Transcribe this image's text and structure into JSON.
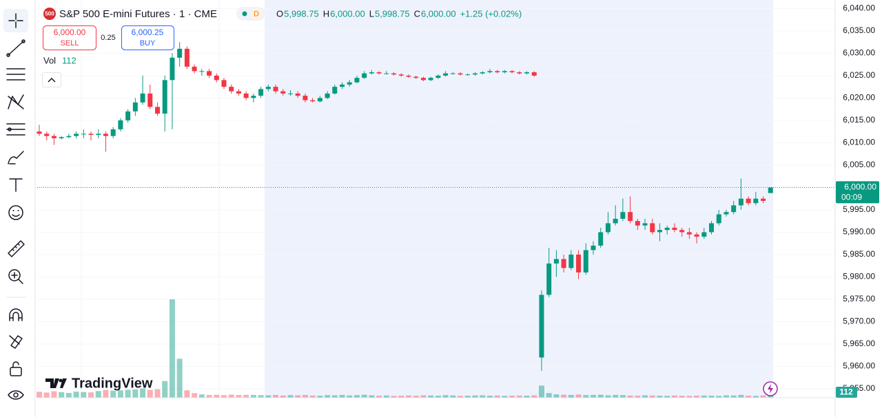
{
  "header": {
    "badge": "500",
    "symbol": "S&P 500 E-mini Futures · 1 · CME",
    "interval_badge": "D",
    "ohlc": [
      {
        "label": "O",
        "value": "5,998.75"
      },
      {
        "label": "H",
        "value": "6,000.00"
      },
      {
        "label": "L",
        "value": "5,998.75"
      },
      {
        "label": "C",
        "value": "6,000.00"
      }
    ],
    "change": "+1.25 (+0.02%)"
  },
  "trade": {
    "sell_price": "6,000.00",
    "sell": "SELL",
    "spread": "0.25",
    "buy_price": "6,000.25",
    "buy": "BUY"
  },
  "volume_title": "Vol",
  "logo": "TradingView",
  "countdown": "00:09",
  "chart_data": {
    "type": "candlestick",
    "up_color": "#089981",
    "down_color": "#f23645",
    "ylim": [
      5953,
      6041.9
    ],
    "yticks": [
      {
        "value": 5955,
        "label": "5,955.00"
      },
      {
        "value": 5960,
        "label": "5,960.00"
      },
      {
        "value": 5965,
        "label": "5,965.00"
      },
      {
        "value": 5970,
        "label": "5,970.00"
      },
      {
        "value": 5975,
        "label": "5,975.00"
      },
      {
        "value": 5980,
        "label": "5,980.00"
      },
      {
        "value": 5985,
        "label": "5,985.00"
      },
      {
        "value": 5990,
        "label": "5,990.00"
      },
      {
        "value": 5995,
        "label": "5,995.00"
      },
      {
        "value": 6000,
        "label": "6,000.00"
      },
      {
        "value": 6005,
        "label": "6,005.00"
      },
      {
        "value": 6010,
        "label": "6,010.00"
      },
      {
        "value": 6015,
        "label": "6,015.00"
      },
      {
        "value": 6020,
        "label": "6,020.00"
      },
      {
        "value": 6025,
        "label": "6,025.00"
      },
      {
        "value": 6030,
        "label": "6,030.00"
      },
      {
        "value": 6035,
        "label": "6,035.00"
      },
      {
        "value": 6040,
        "label": "6,040.00"
      }
    ],
    "last_price": {
      "value": 6000,
      "label": "6,000.00"
    },
    "ohlc": [
      [
        6012.5,
        6014,
        6011.5,
        6012
      ],
      [
        6012,
        6012.5,
        6010.5,
        6011.5
      ],
      [
        6011.5,
        6012,
        6009.5,
        6011
      ],
      [
        6011,
        6011.5,
        6010.75,
        6011.25
      ],
      [
        6011.25,
        6012,
        6011,
        6011.5
      ],
      [
        6011.5,
        6012.5,
        6011,
        6012
      ],
      [
        6012,
        6013,
        6011,
        6012
      ],
      [
        6012,
        6012.5,
        6010.5,
        6011.75
      ],
      [
        6011.75,
        6013,
        6011,
        6012
      ],
      [
        6012,
        6012.5,
        6008,
        6011.5
      ],
      [
        6011.5,
        6013.5,
        6011,
        6013
      ],
      [
        6013,
        6015.5,
        6012.5,
        6015
      ],
      [
        6015,
        6017.5,
        6014.5,
        6017
      ],
      [
        6017,
        6020,
        6016,
        6019
      ],
      [
        6019,
        6025,
        6018.5,
        6021
      ],
      [
        6021,
        6023,
        6017.5,
        6018
      ],
      [
        6018,
        6019,
        6016,
        6016.5
      ],
      [
        6016.5,
        6025,
        6012.5,
        6024
      ],
      [
        6024,
        6030,
        6013,
        6029
      ],
      [
        6029,
        6032.5,
        6027,
        6031
      ],
      [
        6031,
        6031.5,
        6026.5,
        6027
      ],
      [
        6027,
        6027.5,
        6025.5,
        6026
      ],
      [
        6026,
        6026.5,
        6025,
        6026
      ],
      [
        6026,
        6026.5,
        6024.5,
        6025
      ],
      [
        6025,
        6025.5,
        6023.5,
        6024
      ],
      [
        6024,
        6024.5,
        6022,
        6022.5
      ],
      [
        6022.5,
        6023,
        6021,
        6021.5
      ],
      [
        6021.5,
        6022,
        6020.5,
        6021
      ],
      [
        6021,
        6021.5,
        6019.5,
        6020
      ],
      [
        6020,
        6021,
        6019,
        6020.5
      ],
      [
        6020.5,
        6022.5,
        6020,
        6022
      ],
      [
        6022,
        6023,
        6021.5,
        6022.5
      ],
      [
        6022.5,
        6023,
        6021,
        6021.5
      ],
      [
        6021.5,
        6022,
        6020.5,
        6021
      ],
      [
        6021,
        6021.75,
        6020.5,
        6021
      ],
      [
        6021,
        6021.5,
        6020,
        6020.5
      ],
      [
        6020.5,
        6021,
        6019,
        6019.5
      ],
      [
        6019.5,
        6020,
        6019,
        6019.25
      ],
      [
        6019.25,
        6020.5,
        6019,
        6020
      ],
      [
        6020,
        6021.5,
        6019.75,
        6021
      ],
      [
        6021,
        6023,
        6020.75,
        6022.5
      ],
      [
        6022.5,
        6023.5,
        6022,
        6023
      ],
      [
        6023,
        6024,
        6022.5,
        6023.5
      ],
      [
        6023.5,
        6025,
        6023.25,
        6024.5
      ],
      [
        6024.5,
        6026,
        6024.25,
        6025.5
      ],
      [
        6025.5,
        6026.25,
        6025.25,
        6025.75
      ],
      [
        6025.75,
        6026,
        6025.25,
        6025.5
      ],
      [
        6025.5,
        6026,
        6025.25,
        6025.5
      ],
      [
        6025.5,
        6025.75,
        6025,
        6025.25
      ],
      [
        6025.25,
        6025.5,
        6024.75,
        6025
      ],
      [
        6025,
        6025.25,
        6024.5,
        6024.75
      ],
      [
        6024.75,
        6025,
        6024.25,
        6024.5
      ],
      [
        6024.5,
        6024.75,
        6023.75,
        6024
      ],
      [
        6024,
        6024.75,
        6023.75,
        6024.5
      ],
      [
        6024.5,
        6025.25,
        6024.25,
        6025
      ],
      [
        6025,
        6026,
        6024.75,
        6025.5
      ],
      [
        6025.5,
        6025.75,
        6025.25,
        6025.5
      ],
      [
        6025.5,
        6025.75,
        6025,
        6025.25
      ],
      [
        6025.25,
        6025.5,
        6025,
        6025.25
      ],
      [
        6025.25,
        6025.75,
        6025,
        6025.5
      ],
      [
        6025.5,
        6026,
        6025.25,
        6025.75
      ],
      [
        6025.75,
        6026.5,
        6025.5,
        6026
      ],
      [
        6026,
        6026.25,
        6025.5,
        6025.75
      ],
      [
        6025.75,
        6026.25,
        6025.5,
        6026
      ],
      [
        6026,
        6026.25,
        6025.5,
        6025.75
      ],
      [
        6025.75,
        6026,
        6025.25,
        6025.5
      ],
      [
        6025.5,
        6026,
        6025.25,
        6025.75
      ],
      [
        6025.75,
        6026,
        6024.75,
        6025
      ],
      [
        5962,
        5977,
        5959,
        5976
      ],
      [
        5976,
        5986.5,
        5975.5,
        5983
      ],
      [
        5983,
        5986,
        5980,
        5984
      ],
      [
        5984,
        5985,
        5981,
        5982
      ],
      [
        5982,
        5986,
        5981.5,
        5985
      ],
      [
        5985,
        5986,
        5979.5,
        5981
      ],
      [
        5981,
        5987.5,
        5980.5,
        5986
      ],
      [
        5986,
        5988,
        5985,
        5987
      ],
      [
        5987,
        5991,
        5986.5,
        5990
      ],
      [
        5990,
        5994.5,
        5989.5,
        5992
      ],
      [
        5992,
        5996,
        5991.5,
        5993
      ],
      [
        5993,
        5997.5,
        5992.5,
        5994.5
      ],
      [
        5994.5,
        5998,
        5992,
        5992.5
      ],
      [
        5992.5,
        5993,
        5990.5,
        5991.5
      ],
      [
        5991.5,
        5993,
        5990.5,
        5992
      ],
      [
        5992,
        5993,
        5989.5,
        5990
      ],
      [
        5990,
        5992,
        5988,
        5990.5
      ],
      [
        5990.5,
        5991.5,
        5989.5,
        5991
      ],
      [
        5991,
        5992,
        5990,
        5990.5
      ],
      [
        5990.5,
        5991,
        5989,
        5990
      ],
      [
        5990,
        5991,
        5988.5,
        5989.5
      ],
      [
        5989.5,
        5990,
        5987.5,
        5989
      ],
      [
        5989,
        5991,
        5988.5,
        5990
      ],
      [
        5990,
        5992.5,
        5989.5,
        5992
      ],
      [
        5992,
        5995,
        5991.5,
        5994
      ],
      [
        5994,
        5995,
        5993.5,
        5994.5
      ],
      [
        5994.5,
        5997,
        5994,
        5996
      ],
      [
        5996,
        6002,
        5995,
        5997.5
      ],
      [
        5997.5,
        5998,
        5996,
        5996.5
      ],
      [
        5996.5,
        5999,
        5996,
        5997.5
      ],
      [
        5997.5,
        5998,
        5996.5,
        5997
      ],
      [
        5998.75,
        6000,
        5998.75,
        6000
      ]
    ],
    "volume": [
      320,
      280,
      350,
      300,
      260,
      330,
      310,
      290,
      360,
      420,
      380,
      400,
      430,
      450,
      500,
      420,
      460,
      900,
      5300,
      2100,
      400,
      250,
      180,
      150,
      160,
      140,
      170,
      150,
      160,
      150,
      140,
      130,
      150,
      120,
      140,
      130,
      150,
      120,
      110,
      140,
      130,
      150,
      120,
      140,
      160,
      130,
      110,
      120,
      100,
      110,
      120,
      110,
      130,
      120,
      110,
      140,
      120,
      100,
      110,
      120,
      130,
      110,
      120,
      100,
      110,
      120,
      110,
      130,
      650,
      250,
      180,
      160,
      150,
      170,
      140,
      150,
      160,
      130,
      150,
      140,
      120,
      110,
      130,
      120,
      110,
      100,
      120,
      110,
      100,
      110,
      120,
      110,
      100,
      130,
      120,
      150,
      110,
      100,
      120,
      112
    ]
  }
}
